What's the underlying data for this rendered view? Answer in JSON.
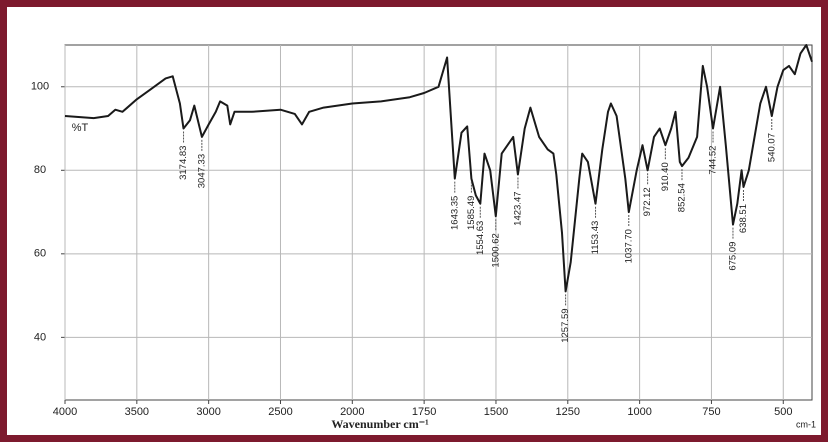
{
  "chart_data": {
    "type": "line",
    "y_label": "%T",
    "x_label": "Wavenumber cm⁻¹",
    "x_unit": "cm-1",
    "color": "#1a1a1a",
    "grid": true,
    "xlim": [
      4000,
      400
    ],
    "xticks": [
      4000,
      3500,
      3000,
      2500,
      2000,
      1750,
      1500,
      1250,
      1000,
      750,
      500
    ],
    "ylim": [
      25,
      110
    ],
    "yticks": [
      40,
      60,
      80,
      100
    ],
    "x": [
      4000,
      3800,
      3700,
      3650,
      3600,
      3500,
      3400,
      3300,
      3250,
      3200,
      3174.83,
      3130,
      3100,
      3047.33,
      3000,
      2950,
      2920,
      2870,
      2850,
      2820,
      2700,
      2500,
      2400,
      2350,
      2300,
      2200,
      2000,
      1900,
      1800,
      1750,
      1700,
      1670,
      1643.35,
      1620,
      1600,
      1585.49,
      1570,
      1554.63,
      1540,
      1520,
      1500.62,
      1480,
      1460,
      1440,
      1423.47,
      1400,
      1380,
      1350,
      1320,
      1300,
      1290,
      1270,
      1257.59,
      1240,
      1210,
      1200,
      1180,
      1153.43,
      1130,
      1110,
      1100,
      1080,
      1050,
      1037.7,
      1010,
      990,
      972.12,
      950,
      930,
      910.4,
      890,
      875,
      860,
      852.54,
      830,
      800,
      780,
      765,
      744.52,
      720,
      700,
      675.09,
      660,
      645,
      638.51,
      620,
      580,
      560,
      540.07,
      520,
      500,
      480,
      460,
      440,
      420,
      400
    ],
    "values": [
      93,
      92.5,
      93,
      94.5,
      94,
      97,
      99.5,
      102,
      102.5,
      96,
      90,
      92,
      95.5,
      88,
      91,
      94,
      96.5,
      95.5,
      91,
      94,
      94,
      94.5,
      93.5,
      91,
      94,
      95,
      96,
      96.5,
      97.5,
      98.5,
      100,
      107,
      78,
      89,
      90.5,
      78,
      74,
      72,
      84,
      80,
      69,
      84,
      86,
      88,
      79,
      90,
      95,
      88,
      85,
      84,
      79,
      65,
      51,
      58,
      78,
      84,
      82,
      72,
      85,
      94,
      96,
      93,
      78,
      70,
      80,
      86,
      80,
      88,
      90,
      86,
      90,
      94,
      82,
      81,
      83,
      88,
      105,
      100,
      90,
      100,
      86,
      67,
      72,
      80,
      76,
      80,
      96,
      100,
      93,
      100,
      104,
      105,
      103,
      108,
      110,
      106
    ],
    "peaks": [
      3174.83,
      3047.33,
      1643.35,
      1585.49,
      1554.63,
      1500.62,
      1423.47,
      1257.59,
      1153.43,
      {
        "value": 1037.7,
        "label": "1037.70"
      },
      972.12,
      {
        "value": 910.4,
        "label": "910.40"
      },
      852.54,
      744.52,
      675.09,
      638.51,
      540.07
    ]
  }
}
